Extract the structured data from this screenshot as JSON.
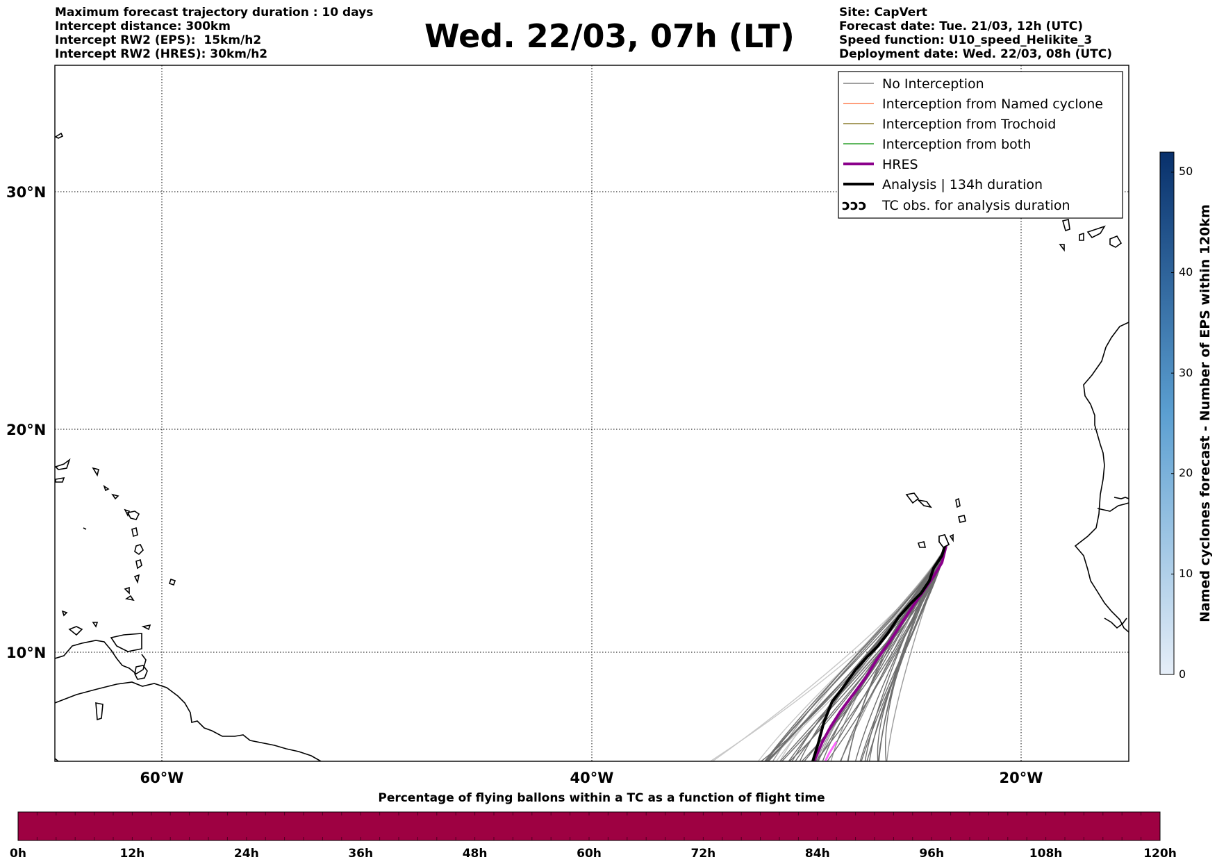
{
  "header": {
    "title": "Wed. 22/03, 07h (LT)",
    "left_lines": [
      "Maximum forecast trajectory duration : 10 days",
      "Intercept distance: 300km",
      "Intercept RW2 (EPS):  15km/h2",
      "Intercept RW2 (HRES): 30km/h2"
    ],
    "right_lines": [
      "Site: CapVert",
      "Forecast date: Tue. 21/03, 12h (UTC)",
      "Speed function: U10_speed_Helikite_3",
      "Deployment date: Wed. 22/03, 08h (UTC)"
    ]
  },
  "map": {
    "lat_labels": [
      "30°N",
      "20°N",
      "10°N"
    ],
    "lon_labels": [
      "60°W",
      "40°W",
      "20°W"
    ],
    "land_color": "#ffffff",
    "grid": "dotted"
  },
  "legend": {
    "placement": "top-right",
    "items": [
      {
        "label": "No Interception",
        "color": "#808080"
      },
      {
        "label": "Interception from Named cyclone",
        "color": "#ff7f50"
      },
      {
        "label": "Interception from Trochoid",
        "color": "#8b7d2e"
      },
      {
        "label": "Interception from both",
        "color": "#2ca02c"
      },
      {
        "label": "HRES",
        "color": "#8b008b"
      },
      {
        "label": "Analysis | 134h duration",
        "color": "#000000"
      },
      {
        "label": "TC obs. for analysis duration",
        "icon": "cyclone-symbols-icon"
      }
    ]
  },
  "colorbar": {
    "label": "Named cyclones forecast - Number of EPS within 120km",
    "ticks": [
      "0",
      "10",
      "20",
      "30",
      "40",
      "50"
    ],
    "range": [
      0,
      52
    ],
    "color_low": "#e6eef8",
    "color_high": "#08306b"
  },
  "percentage_bar": {
    "title": "Percentage of flying ballons within a TC as a function of flight time",
    "ticks": [
      "0h",
      "12h",
      "24h",
      "36h",
      "48h",
      "60h",
      "72h",
      "84h",
      "96h",
      "108h",
      "120h"
    ],
    "color": "#9e0142"
  }
}
